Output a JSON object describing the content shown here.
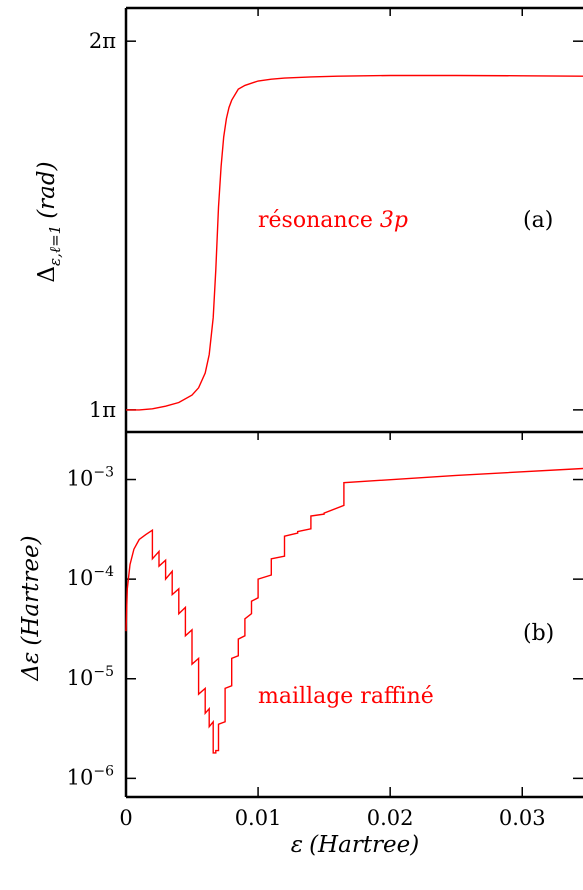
{
  "chart_data": [
    {
      "type": "line",
      "panel": "(a)",
      "title": "",
      "xlabel": "",
      "ylabel": "Δε,ℓ=1 (rad)",
      "xlim": [
        0,
        0.035
      ],
      "ylim": [
        0.94,
        2.09
      ],
      "yticks": [
        {
          "value": 1,
          "label": "1π"
        },
        {
          "value": 2,
          "label": "2π"
        }
      ],
      "annotations": [
        {
          "text_plain": "résonance ",
          "text_accent": "3p",
          "color": "#ff0000"
        },
        {
          "text": "(a)",
          "color": "#000000"
        }
      ],
      "series": [
        {
          "color": "#ff0000",
          "x": [
            0,
            0.001,
            0.002,
            0.003,
            0.004,
            0.005,
            0.0055,
            0.006,
            0.0063,
            0.0066,
            0.0068,
            0.007,
            0.0072,
            0.0074,
            0.0076,
            0.0078,
            0.008,
            0.0085,
            0.009,
            0.01,
            0.011,
            0.012,
            0.014,
            0.016,
            0.02,
            0.025,
            0.03,
            0.035
          ],
          "y": [
            1.0,
            1.0,
            1.003,
            1.01,
            1.02,
            1.04,
            1.06,
            1.1,
            1.15,
            1.25,
            1.38,
            1.55,
            1.66,
            1.74,
            1.79,
            1.82,
            1.84,
            1.87,
            1.88,
            1.892,
            1.897,
            1.9,
            1.903,
            1.905,
            1.907,
            1.907,
            1.906,
            1.905
          ]
        }
      ]
    },
    {
      "type": "line",
      "panel": "(b)",
      "title": "",
      "xlabel": "ε (Hartree)",
      "ylabel": "Δε (Hartree)",
      "xlim": [
        0,
        0.035
      ],
      "ylim": [
        6.5e-07,
        0.003
      ],
      "yscale": "log",
      "xticks": [
        {
          "value": 0,
          "label": "0"
        },
        {
          "value": 0.01,
          "label": "0.01"
        },
        {
          "value": 0.02,
          "label": "0.02"
        },
        {
          "value": 0.03,
          "label": "0.03"
        }
      ],
      "yticks": [
        {
          "value": 1e-06,
          "label": "10−6"
        },
        {
          "value": 1e-05,
          "label": "10−5"
        },
        {
          "value": 0.0001,
          "label": "10−4"
        },
        {
          "value": 0.001,
          "label": "10−3"
        }
      ],
      "annotations": [
        {
          "text": "maillage raffiné",
          "color": "#ff0000"
        },
        {
          "text": "(b)",
          "color": "#000000"
        }
      ],
      "series": [
        {
          "color": "#ff0000",
          "x": [
            0,
            0.0001,
            0.0003,
            0.0006,
            0.001,
            0.0015,
            0.002,
            0.002,
            0.0025,
            0.0025,
            0.003,
            0.003,
            0.0035,
            0.0035,
            0.004,
            0.004,
            0.0045,
            0.0045,
            0.005,
            0.005,
            0.0055,
            0.0055,
            0.006,
            0.006,
            0.0063,
            0.0063,
            0.0066,
            0.0066,
            0.0068,
            0.0068,
            0.007,
            0.007,
            0.0075,
            0.0075,
            0.008,
            0.008,
            0.0085,
            0.0085,
            0.009,
            0.009,
            0.0095,
            0.0095,
            0.01,
            0.01,
            0.011,
            0.011,
            0.012,
            0.012,
            0.013,
            0.013,
            0.014,
            0.014,
            0.015,
            0.015,
            0.0165,
            0.0165,
            0.025,
            0.035
          ],
          "y": [
            3e-05,
            8e-05,
            0.00014,
            0.0002,
            0.00025,
            0.00028,
            0.00031,
            0.00016,
            0.00019,
            0.000135,
            0.000155,
            0.0001,
            0.00012,
            7e-05,
            8e-05,
            4.5e-05,
            5.2e-05,
            2.7e-05,
            3.1e-05,
            1.4e-05,
            1.6e-05,
            7e-06,
            8e-06,
            4.5e-06,
            5e-06,
            3.3e-06,
            3.7e-06,
            1.8e-06,
            1.8e-06,
            1.9e-06,
            1.9e-06,
            3.5e-06,
            3.7e-06,
            8e-06,
            8.5e-06,
            1.6e-05,
            1.7e-05,
            2.5e-05,
            2.7e-05,
            4e-05,
            4.5e-05,
            6e-05,
            6.5e-05,
            0.0001,
            0.00011,
            0.00016,
            0.00017,
            0.00027,
            0.00029,
            0.0003,
            0.00032,
            0.00043,
            0.00045,
            0.00046,
            0.00055,
            0.00093,
            0.0011,
            0.0013
          ]
        }
      ]
    }
  ],
  "label_parts": {
    "a_ylabel": {
      "main": "Δ",
      "sub": "ε,ℓ=1",
      "unit": "(rad)"
    },
    "b_ylabel": {
      "main": "Δε",
      "unit": "(Hartree)"
    },
    "xlabel": {
      "main": "ε",
      "unit": "(Hartree)"
    },
    "tick_base": "10",
    "tick_exps": [
      "−6",
      "−5",
      "−4",
      "−3"
    ]
  },
  "colors": {
    "series": "#ff0000",
    "axes": "#000000"
  }
}
